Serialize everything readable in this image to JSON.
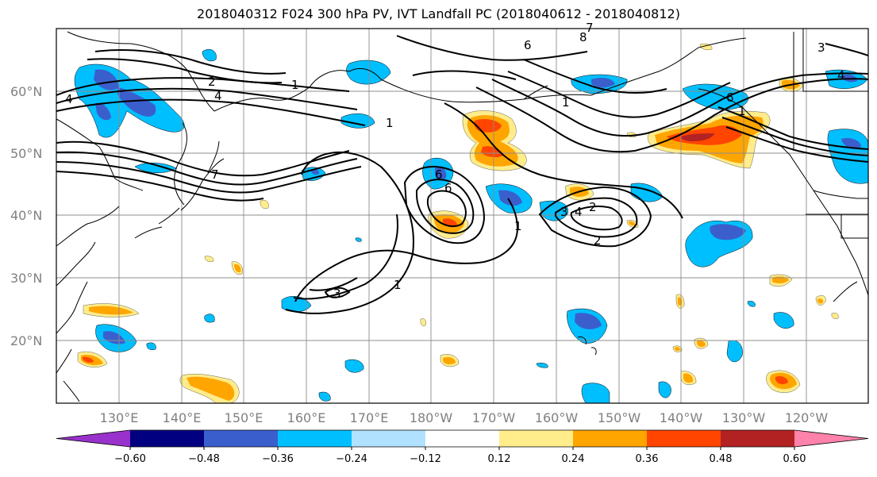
{
  "title": "2018040312 F024 300 hPa PV, IVT Landfall PC (2018040612 - 2018040812)",
  "lat_labels": [
    "60°N",
    "50°N",
    "40°N",
    "30°N",
    "20°N"
  ],
  "lon_labels": [
    "130°E",
    "140°E",
    "150°E",
    "160°E",
    "170°E",
    "180°W",
    "170°W",
    "160°W",
    "150°W",
    "140°W",
    "130°W",
    "120°W"
  ],
  "colorbar": {
    "colors": [
      "#9932cc",
      "#000080",
      "#3a5fcd",
      "#00bfff",
      "#b0e2ff",
      "#ffffff",
      "#ffec8b",
      "#ffa500",
      "#ff4500",
      "#b22222",
      "#ff82ab"
    ],
    "ticks": [
      "−0.60",
      "−0.48",
      "−0.36",
      "−0.24",
      "−0.12",
      "0.12",
      "0.24",
      "0.36",
      "0.48",
      "0.60"
    ]
  },
  "contour_labels": [
    "4",
    "2",
    "4",
    "1",
    "6",
    "8",
    "7",
    "6",
    "1",
    "6",
    "3",
    "4",
    "2",
    "1",
    "2",
    "3",
    "1",
    "1",
    "7",
    "6",
    "1",
    "3",
    "4"
  ]
}
